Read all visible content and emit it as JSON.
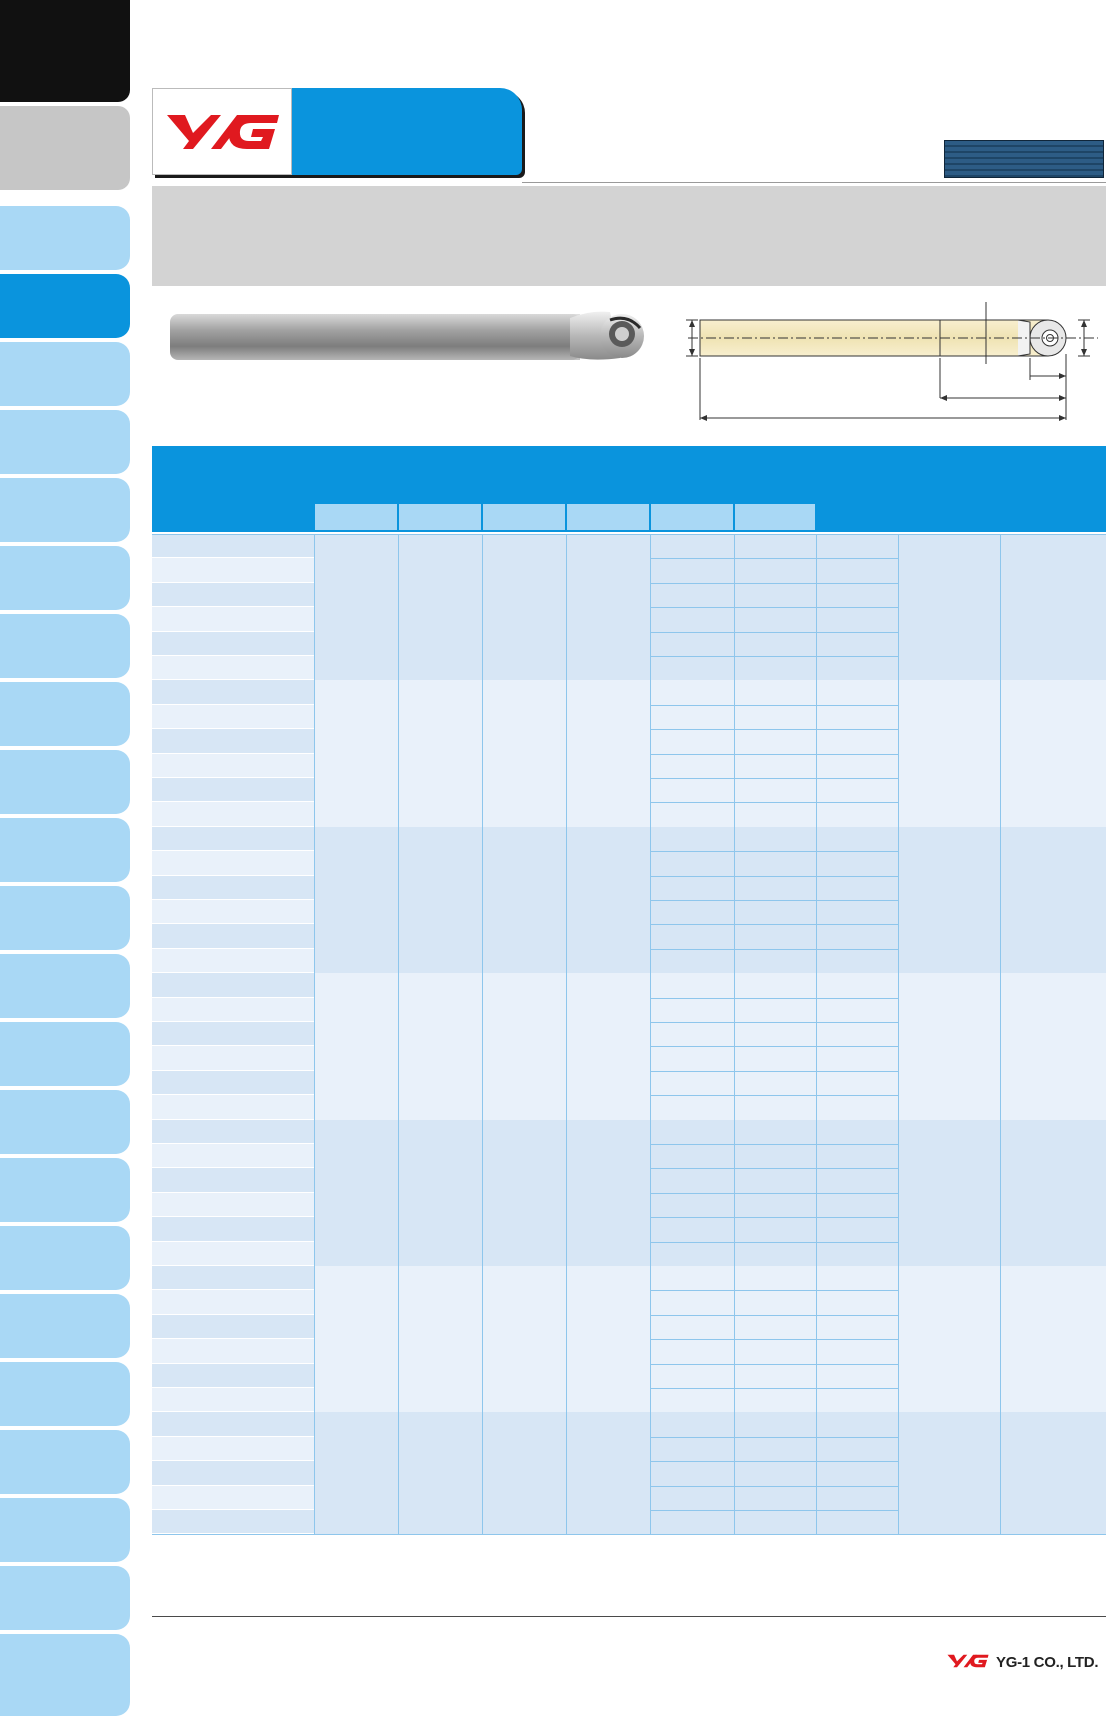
{
  "brand": {
    "accent_blue": "#0a94dd",
    "light_blue": "#a9d8f5",
    "logo_red": "#e0191f",
    "footer_company": "YG-1 CO., LTD."
  },
  "icons": {
    "header_logo": "yg1-logo-icon",
    "footer_logo": "yg1-logo-icon",
    "photo": "ball-end-mill-photo",
    "drawing": "ball-end-mill-drawing"
  }
}
